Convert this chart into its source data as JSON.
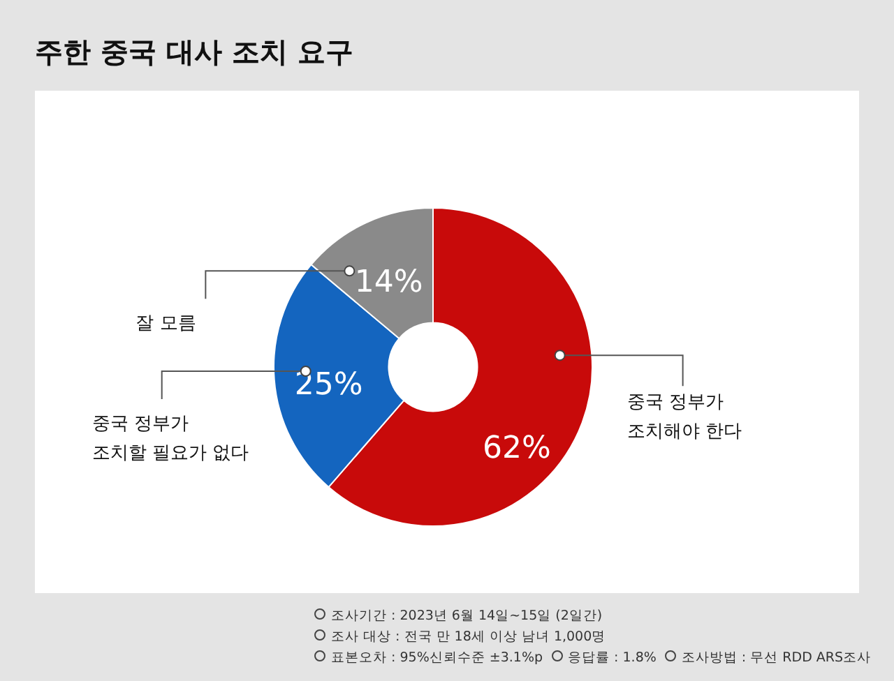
{
  "chart_data": {
    "type": "donut",
    "title": "주한 중국 대사 조치 요구",
    "categories": [
      "중국 정부가\n조치해야 한다",
      "중국 정부가\n조치할 필요가 없다",
      "잘 모름"
    ],
    "values": [
      62,
      25,
      14
    ],
    "colors": [
      "#c80a0a",
      "#1465bf",
      "#8a8a8a"
    ],
    "value_labels": [
      "62%",
      "25%",
      "14%"
    ],
    "legend": false,
    "annotations": [
      "조사기간 : 2023년 6월 14일~15일 (2일간)",
      "조사 대상 : 전국 만 18세 이상 남녀 1,000명",
      "표본오차 : 95%신뢰수준 ±3.1%p",
      "응답률 : 1.8%",
      "조사방법 : 무선 RDD ARS조사"
    ]
  }
}
